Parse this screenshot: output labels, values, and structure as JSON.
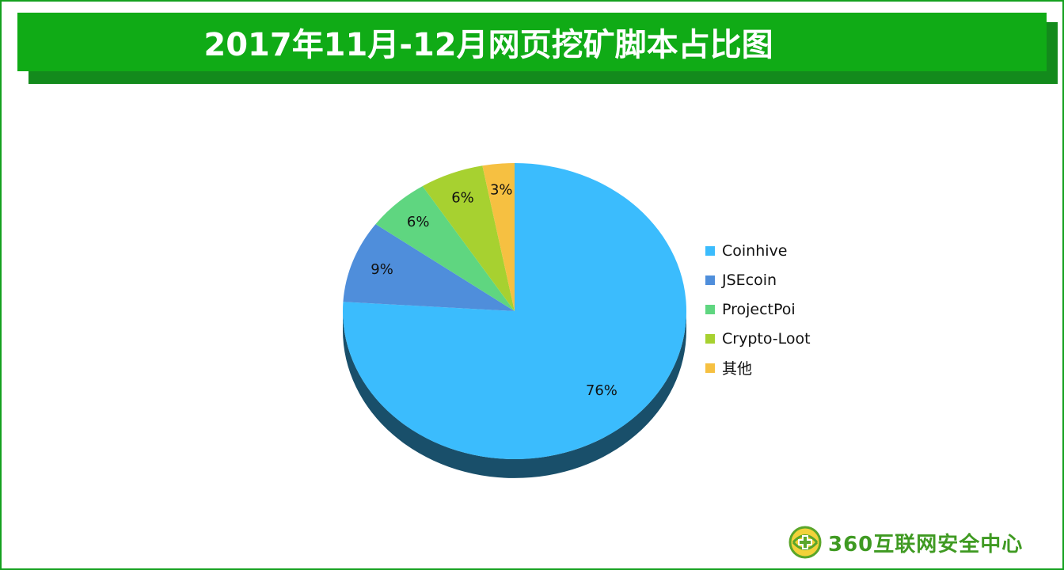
{
  "title": "2017年11月-12月网页挖矿脚本占比图",
  "chart_data": {
    "type": "pie",
    "title": "2017年11月-12月网页挖矿脚本占比图",
    "slices": [
      {
        "name": "Coinhive",
        "value": 76,
        "label": "76%",
        "color": "#3bbcfd"
      },
      {
        "name": "JSEcoin",
        "value": 9,
        "label": "9%",
        "color": "#4f8edb"
      },
      {
        "name": "ProjectPoi",
        "value": 6,
        "label": "6%",
        "color": "#5fd680"
      },
      {
        "name": "Crypto-Loot",
        "value": 6,
        "label": "6%",
        "color": "#a7d130"
      },
      {
        "name": "其他",
        "value": 3,
        "label": "3%",
        "color": "#f6c041"
      }
    ],
    "legend_position": "right",
    "style": "3d"
  },
  "legend": {
    "items": [
      {
        "label": "Coinhive",
        "color": "#3bbcfd"
      },
      {
        "label": "JSEcoin",
        "color": "#4f8edb"
      },
      {
        "label": "ProjectPoi",
        "color": "#5fd680"
      },
      {
        "label": "Crypto-Loot",
        "color": "#a7d130"
      },
      {
        "label": "其他",
        "color": "#f6c041"
      }
    ]
  },
  "logo": {
    "text": "360互联网安全中心",
    "icon": "360-logo-icon"
  }
}
